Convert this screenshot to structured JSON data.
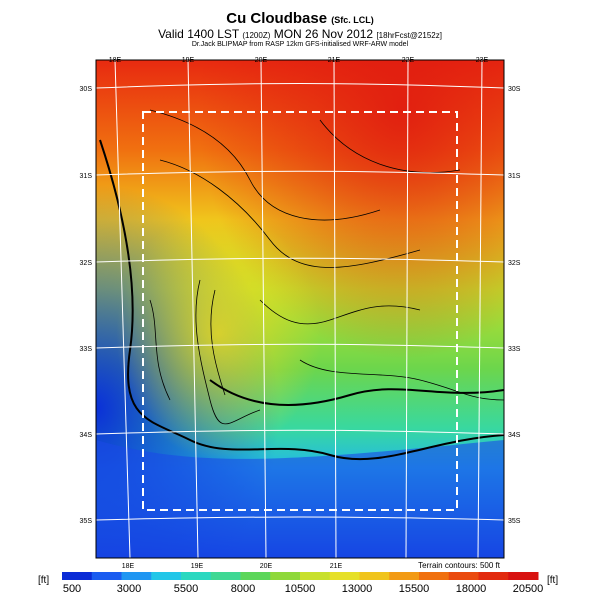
{
  "title": {
    "main": "Cu Cloudbase",
    "main_suffix": "(Sfc. LCL)",
    "valid": "Valid 1400 LST",
    "valid_tz": "(1200Z)",
    "date": "MON 26 Nov 2012",
    "run": "[18hrFcst@2152z]",
    "credit": "Dr.Jack BLIPMAP from RASP 12km GFS-initialised WRF-ARW model"
  },
  "map": {
    "lon_labels": [
      "18E",
      "19E",
      "20E",
      "21E",
      "22E",
      "23E"
    ],
    "lat_labels": [
      "30S",
      "31S",
      "32S",
      "33S",
      "34S",
      "35S"
    ],
    "terrain_note": "Terrain contours: 500 ft"
  },
  "colorbar": {
    "unit_left": "[ft]",
    "unit_right": "[ft]",
    "labels": [
      "500",
      "3000",
      "5500",
      "8000",
      "10500",
      "13000",
      "15500",
      "18000",
      "20500"
    ],
    "colors": [
      "#0a2bd6",
      "#1a5cf0",
      "#1f96f2",
      "#22c6e8",
      "#2ad8c0",
      "#3fd894",
      "#5cd65a",
      "#8ed83a",
      "#c8e02c",
      "#e6e028",
      "#f0c41c",
      "#f29a14",
      "#f0700e",
      "#ea4a0e",
      "#e22a0e",
      "#d81210"
    ]
  }
}
